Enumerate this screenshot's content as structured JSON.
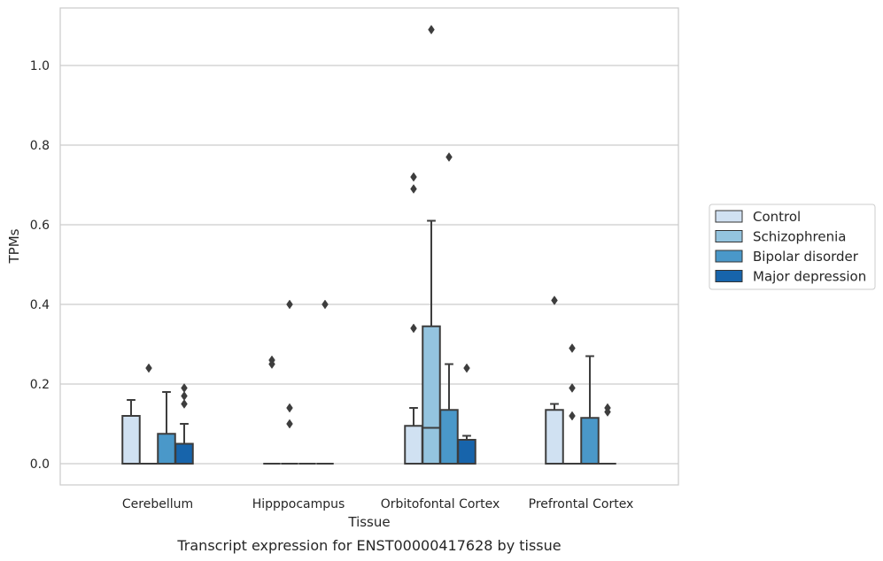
{
  "chart_data": {
    "type": "box",
    "title": "",
    "caption": "Transcript expression for ENST00000417628 by tissue",
    "xlabel": "Tissue",
    "ylabel": "TPMs",
    "ylim": [
      -0.05,
      1.15
    ],
    "yticks": [
      0.0,
      0.2,
      0.4,
      0.6,
      0.8,
      1.0
    ],
    "ytick_labels": [
      "0.0",
      "0.2",
      "0.4",
      "0.6",
      "0.8",
      "1.0"
    ],
    "grid": true,
    "legend_position": "right",
    "categories": [
      "Cerebellum",
      "Hipppocampus",
      "Orbitofontal Cortex",
      "Prefrontal Cortex"
    ],
    "series": [
      {
        "name": "Control",
        "color": "#d0e1f2",
        "boxes": [
          {
            "q1": 0.0,
            "median": 0.0,
            "q3": 0.12,
            "whisker_low": 0.0,
            "whisker_high": 0.16,
            "outliers": []
          },
          {
            "q1": 0.0,
            "median": 0.0,
            "q3": 0.0,
            "whisker_low": 0.0,
            "whisker_high": 0.0,
            "outliers": [
              0.26,
              0.25
            ]
          },
          {
            "q1": 0.0,
            "median": 0.0,
            "q3": 0.095,
            "whisker_low": 0.0,
            "whisker_high": 0.14,
            "outliers": [
              0.72,
              0.69,
              0.34
            ]
          },
          {
            "q1": 0.0,
            "median": 0.0,
            "q3": 0.135,
            "whisker_low": 0.0,
            "whisker_high": 0.15,
            "outliers": [
              0.41
            ]
          }
        ]
      },
      {
        "name": "Schizophrenia",
        "color": "#94c4df",
        "boxes": [
          {
            "q1": 0.0,
            "median": 0.0,
            "q3": 0.0,
            "whisker_low": 0.0,
            "whisker_high": 0.0,
            "outliers": [
              0.24
            ]
          },
          {
            "q1": 0.0,
            "median": 0.0,
            "q3": 0.0,
            "whisker_low": 0.0,
            "whisker_high": 0.0,
            "outliers": [
              0.4,
              0.14,
              0.1
            ]
          },
          {
            "q1": 0.0,
            "median": 0.09,
            "q3": 0.345,
            "whisker_low": 0.0,
            "whisker_high": 0.61,
            "outliers": [
              1.09
            ]
          },
          {
            "q1": 0.0,
            "median": 0.0,
            "q3": 0.0,
            "whisker_low": 0.0,
            "whisker_high": 0.0,
            "outliers": [
              0.29,
              0.19,
              0.12
            ]
          }
        ]
      },
      {
        "name": "Bipolar disorder",
        "color": "#4a98c9",
        "boxes": [
          {
            "q1": 0.0,
            "median": 0.0,
            "q3": 0.075,
            "whisker_low": 0.0,
            "whisker_high": 0.18,
            "outliers": []
          },
          {
            "q1": 0.0,
            "median": 0.0,
            "q3": 0.0,
            "whisker_low": 0.0,
            "whisker_high": 0.0,
            "outliers": []
          },
          {
            "q1": 0.0,
            "median": 0.0,
            "q3": 0.135,
            "whisker_low": 0.0,
            "whisker_high": 0.25,
            "outliers": [
              0.77
            ]
          },
          {
            "q1": 0.0,
            "median": 0.0,
            "q3": 0.115,
            "whisker_low": 0.0,
            "whisker_high": 0.27,
            "outliers": []
          }
        ]
      },
      {
        "name": "Major depression",
        "color": "#1764ab",
        "boxes": [
          {
            "q1": 0.0,
            "median": 0.0,
            "q3": 0.05,
            "whisker_low": 0.0,
            "whisker_high": 0.1,
            "outliers": [
              0.19,
              0.17,
              0.15
            ]
          },
          {
            "q1": 0.0,
            "median": 0.0,
            "q3": 0.0,
            "whisker_low": 0.0,
            "whisker_high": 0.0,
            "outliers": [
              0.4
            ]
          },
          {
            "q1": 0.0,
            "median": 0.0,
            "q3": 0.06,
            "whisker_low": 0.0,
            "whisker_high": 0.07,
            "outliers": [
              0.24
            ]
          },
          {
            "q1": 0.0,
            "median": 0.0,
            "q3": 0.0,
            "whisker_low": 0.0,
            "whisker_high": 0.0,
            "outliers": [
              0.14,
              0.13
            ]
          }
        ]
      }
    ]
  }
}
